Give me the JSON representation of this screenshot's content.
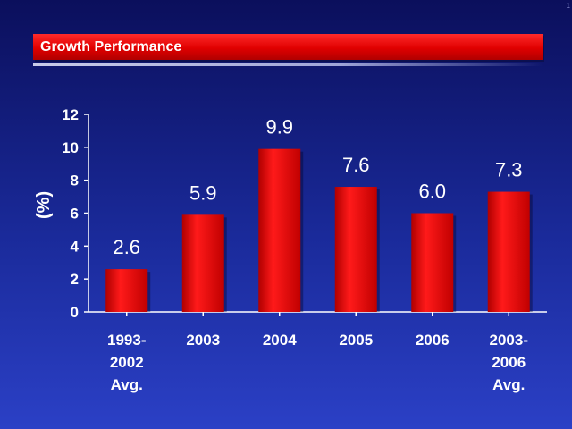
{
  "header": {
    "title": "Growth Performance"
  },
  "corner_mark": "1",
  "chart_data": {
    "type": "bar",
    "categories": [
      [
        "1993-",
        "2002",
        "Avg."
      ],
      [
        "2003"
      ],
      [
        "2004"
      ],
      [
        "2005"
      ],
      [
        "2006"
      ],
      [
        "2003-",
        "2006",
        "Avg."
      ]
    ],
    "values": [
      2.6,
      5.9,
      9.9,
      7.6,
      6.0,
      7.3
    ],
    "value_labels": [
      "2.6",
      "5.9",
      "9.9",
      "7.6",
      "6.0",
      "7.3"
    ],
    "ylabel": "(%)",
    "ylim": [
      0,
      12
    ],
    "yticks": [
      0,
      2,
      4,
      6,
      8,
      10,
      12
    ],
    "grid": false,
    "bar_color": "#e00000",
    "text_color": "#ffffff"
  }
}
